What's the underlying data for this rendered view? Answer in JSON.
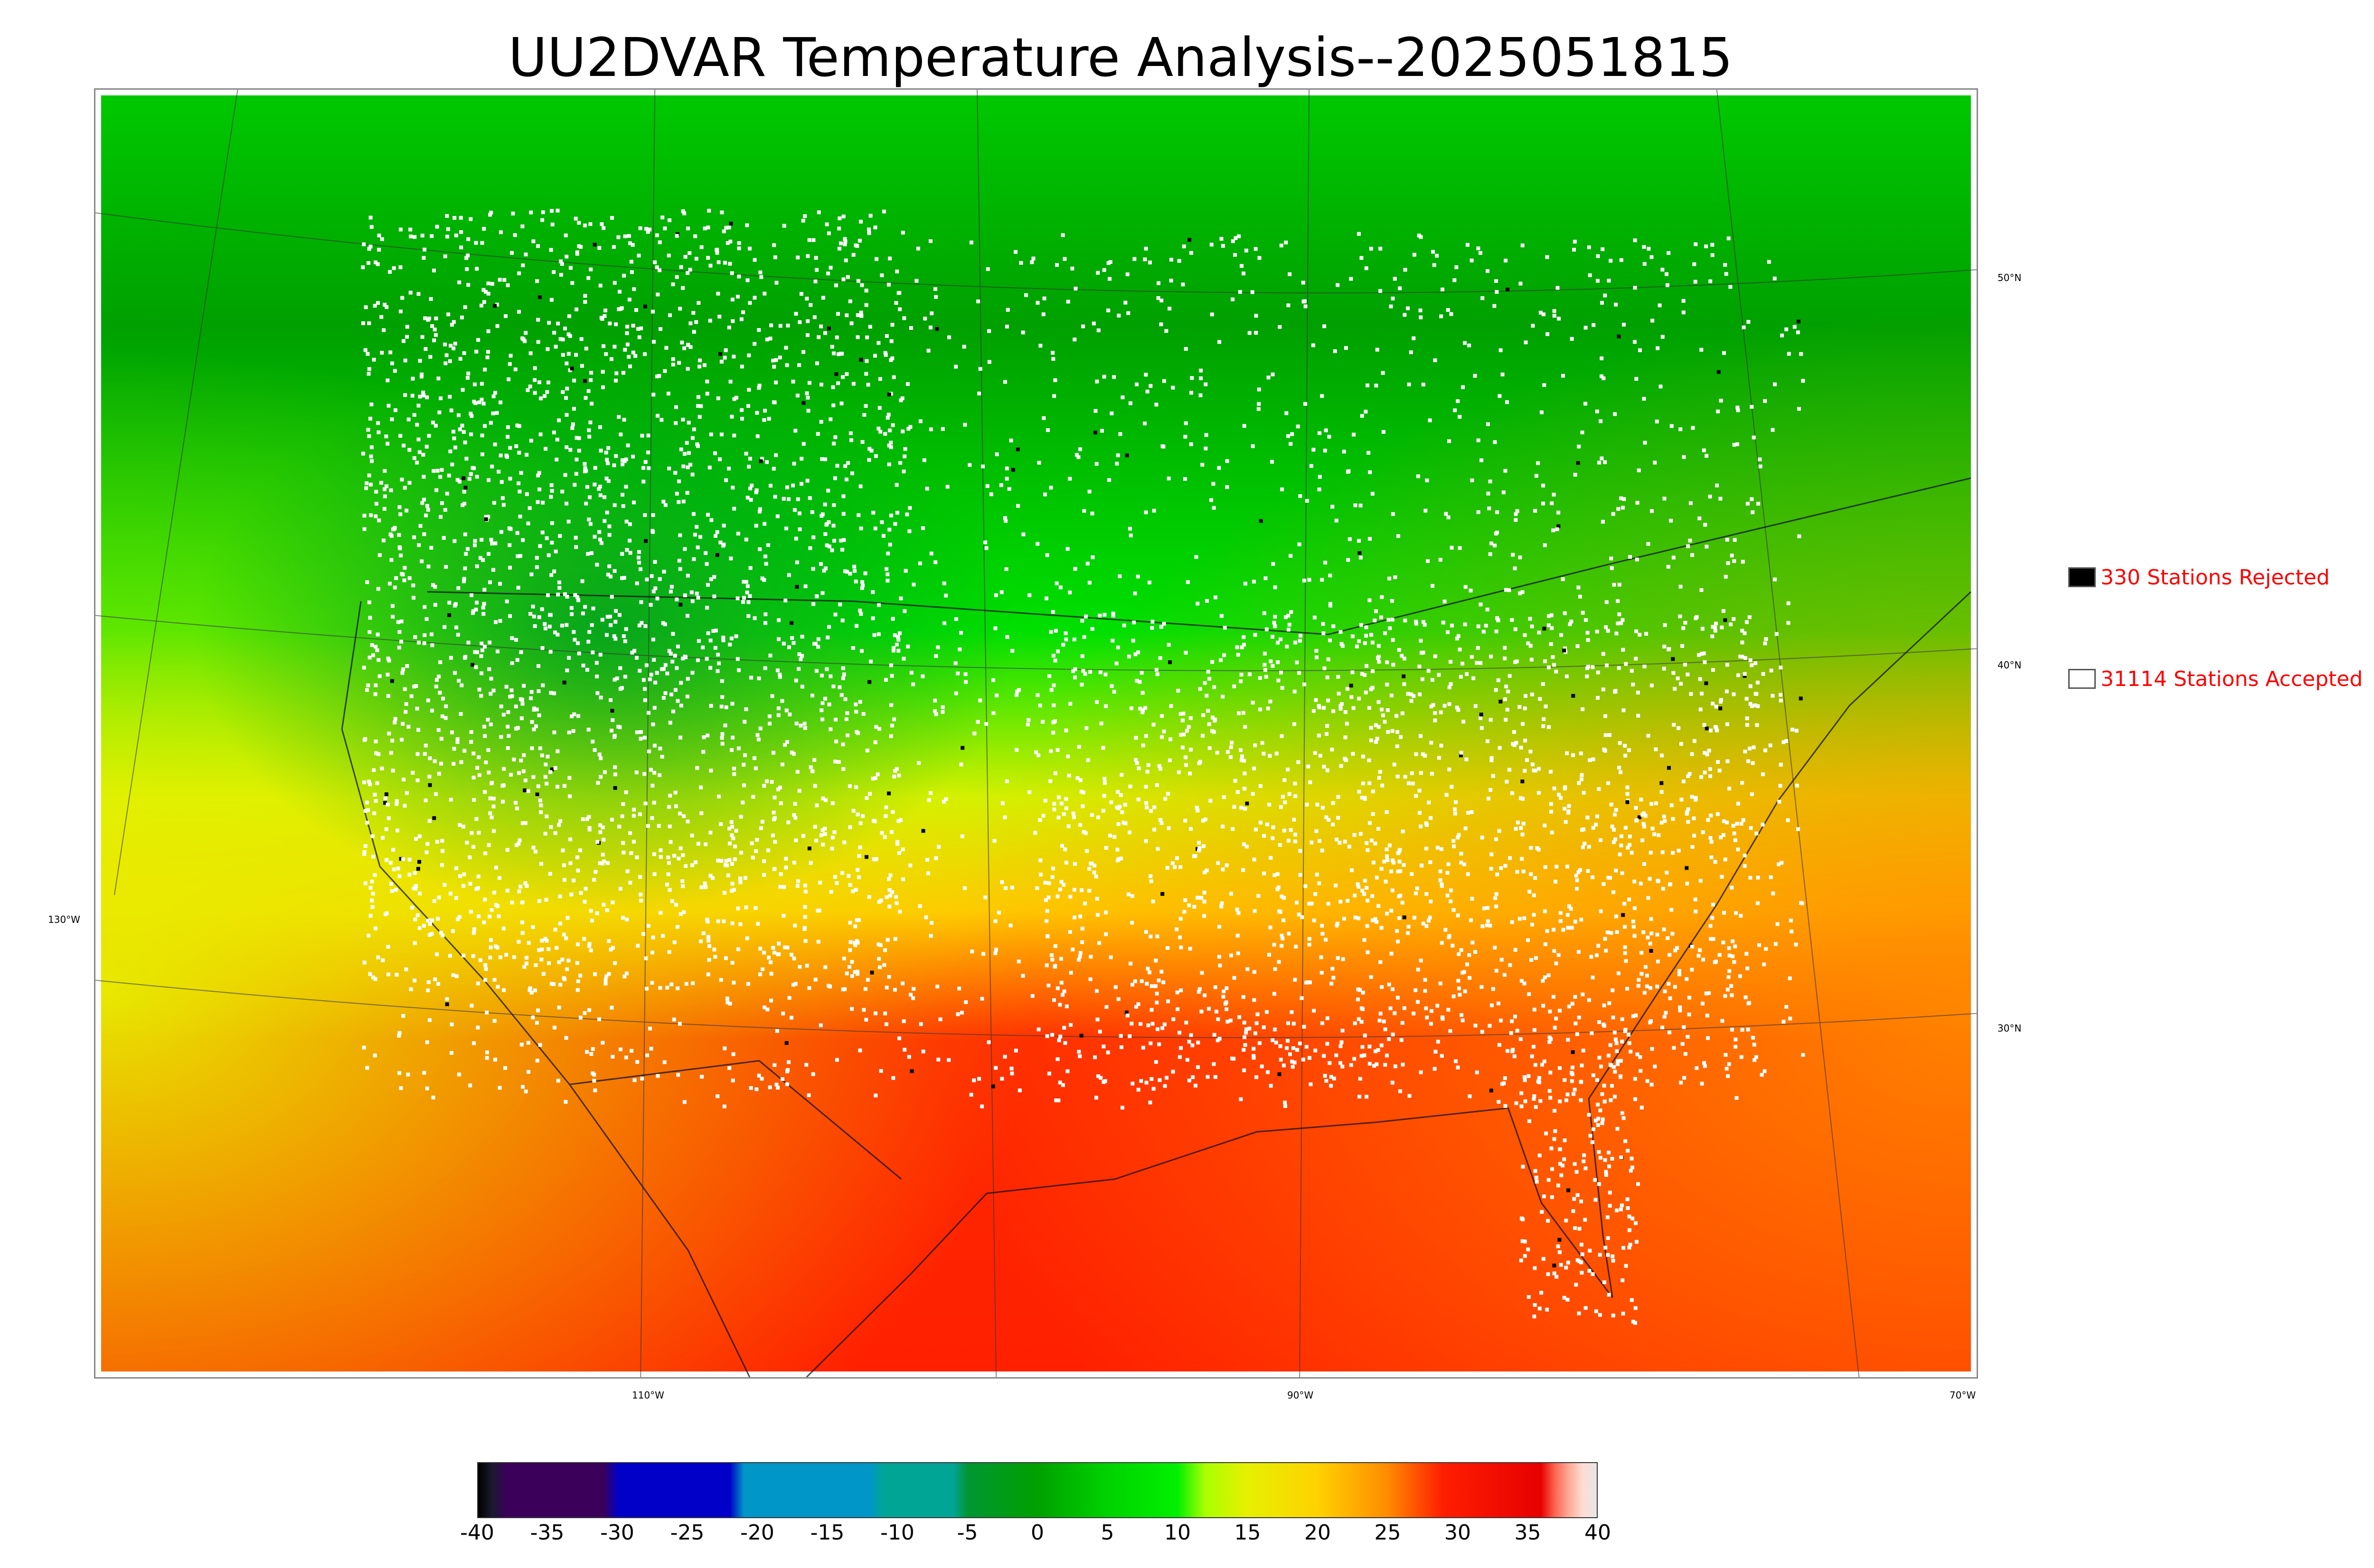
{
  "title": "UU2DVAR Temperature Analysis--2025051815",
  "longitude_labels": [
    "110°W",
    "90°W",
    "70°W"
  ],
  "latitude_labels": [
    "130°W",
    "50°N",
    "40°N",
    "30°N"
  ],
  "legend": {
    "rejected": {
      "label": "330 Stations Rejected",
      "box_color": "#000000"
    },
    "accepted": {
      "label": "31114 Stations Accepted",
      "box_color": "#ffffff"
    },
    "text_color": "#ff0000"
  },
  "colorbar": {
    "ticks": [
      "-40",
      "-35",
      "-30",
      "-25",
      "-20",
      "-15",
      "-10",
      "-5",
      "0",
      "5",
      "10",
      "15",
      "20",
      "25",
      "30",
      "35",
      "40"
    ],
    "min": -40,
    "max": 40,
    "stops": [
      {
        "v": -40,
        "c": "#000000"
      },
      {
        "v": -39,
        "c": "#1a1a2e"
      },
      {
        "v": -38,
        "c": "#3a005a"
      },
      {
        "v": -31,
        "c": "#3a005a"
      },
      {
        "v": -30,
        "c": "#0000c8"
      },
      {
        "v": -22,
        "c": "#0000c8"
      },
      {
        "v": -21,
        "c": "#0096c8"
      },
      {
        "v": -12,
        "c": "#0096c8"
      },
      {
        "v": -11,
        "c": "#00a596"
      },
      {
        "v": -6,
        "c": "#00a596"
      },
      {
        "v": -5,
        "c": "#009632"
      },
      {
        "v": 0,
        "c": "#00a000"
      },
      {
        "v": 5,
        "c": "#00d200"
      },
      {
        "v": 10,
        "c": "#00f000"
      },
      {
        "v": 12,
        "c": "#aaff00"
      },
      {
        "v": 15,
        "c": "#e6f000"
      },
      {
        "v": 20,
        "c": "#ffd200"
      },
      {
        "v": 25,
        "c": "#ff8c00"
      },
      {
        "v": 29,
        "c": "#ff1e00"
      },
      {
        "v": 36,
        "c": "#e60000"
      },
      {
        "v": 37,
        "c": "#ff6450"
      },
      {
        "v": 38,
        "c": "#ffaa96"
      },
      {
        "v": 39,
        "c": "#ffdcd2"
      },
      {
        "v": 40,
        "c": "#e6e6e6"
      }
    ]
  }
}
